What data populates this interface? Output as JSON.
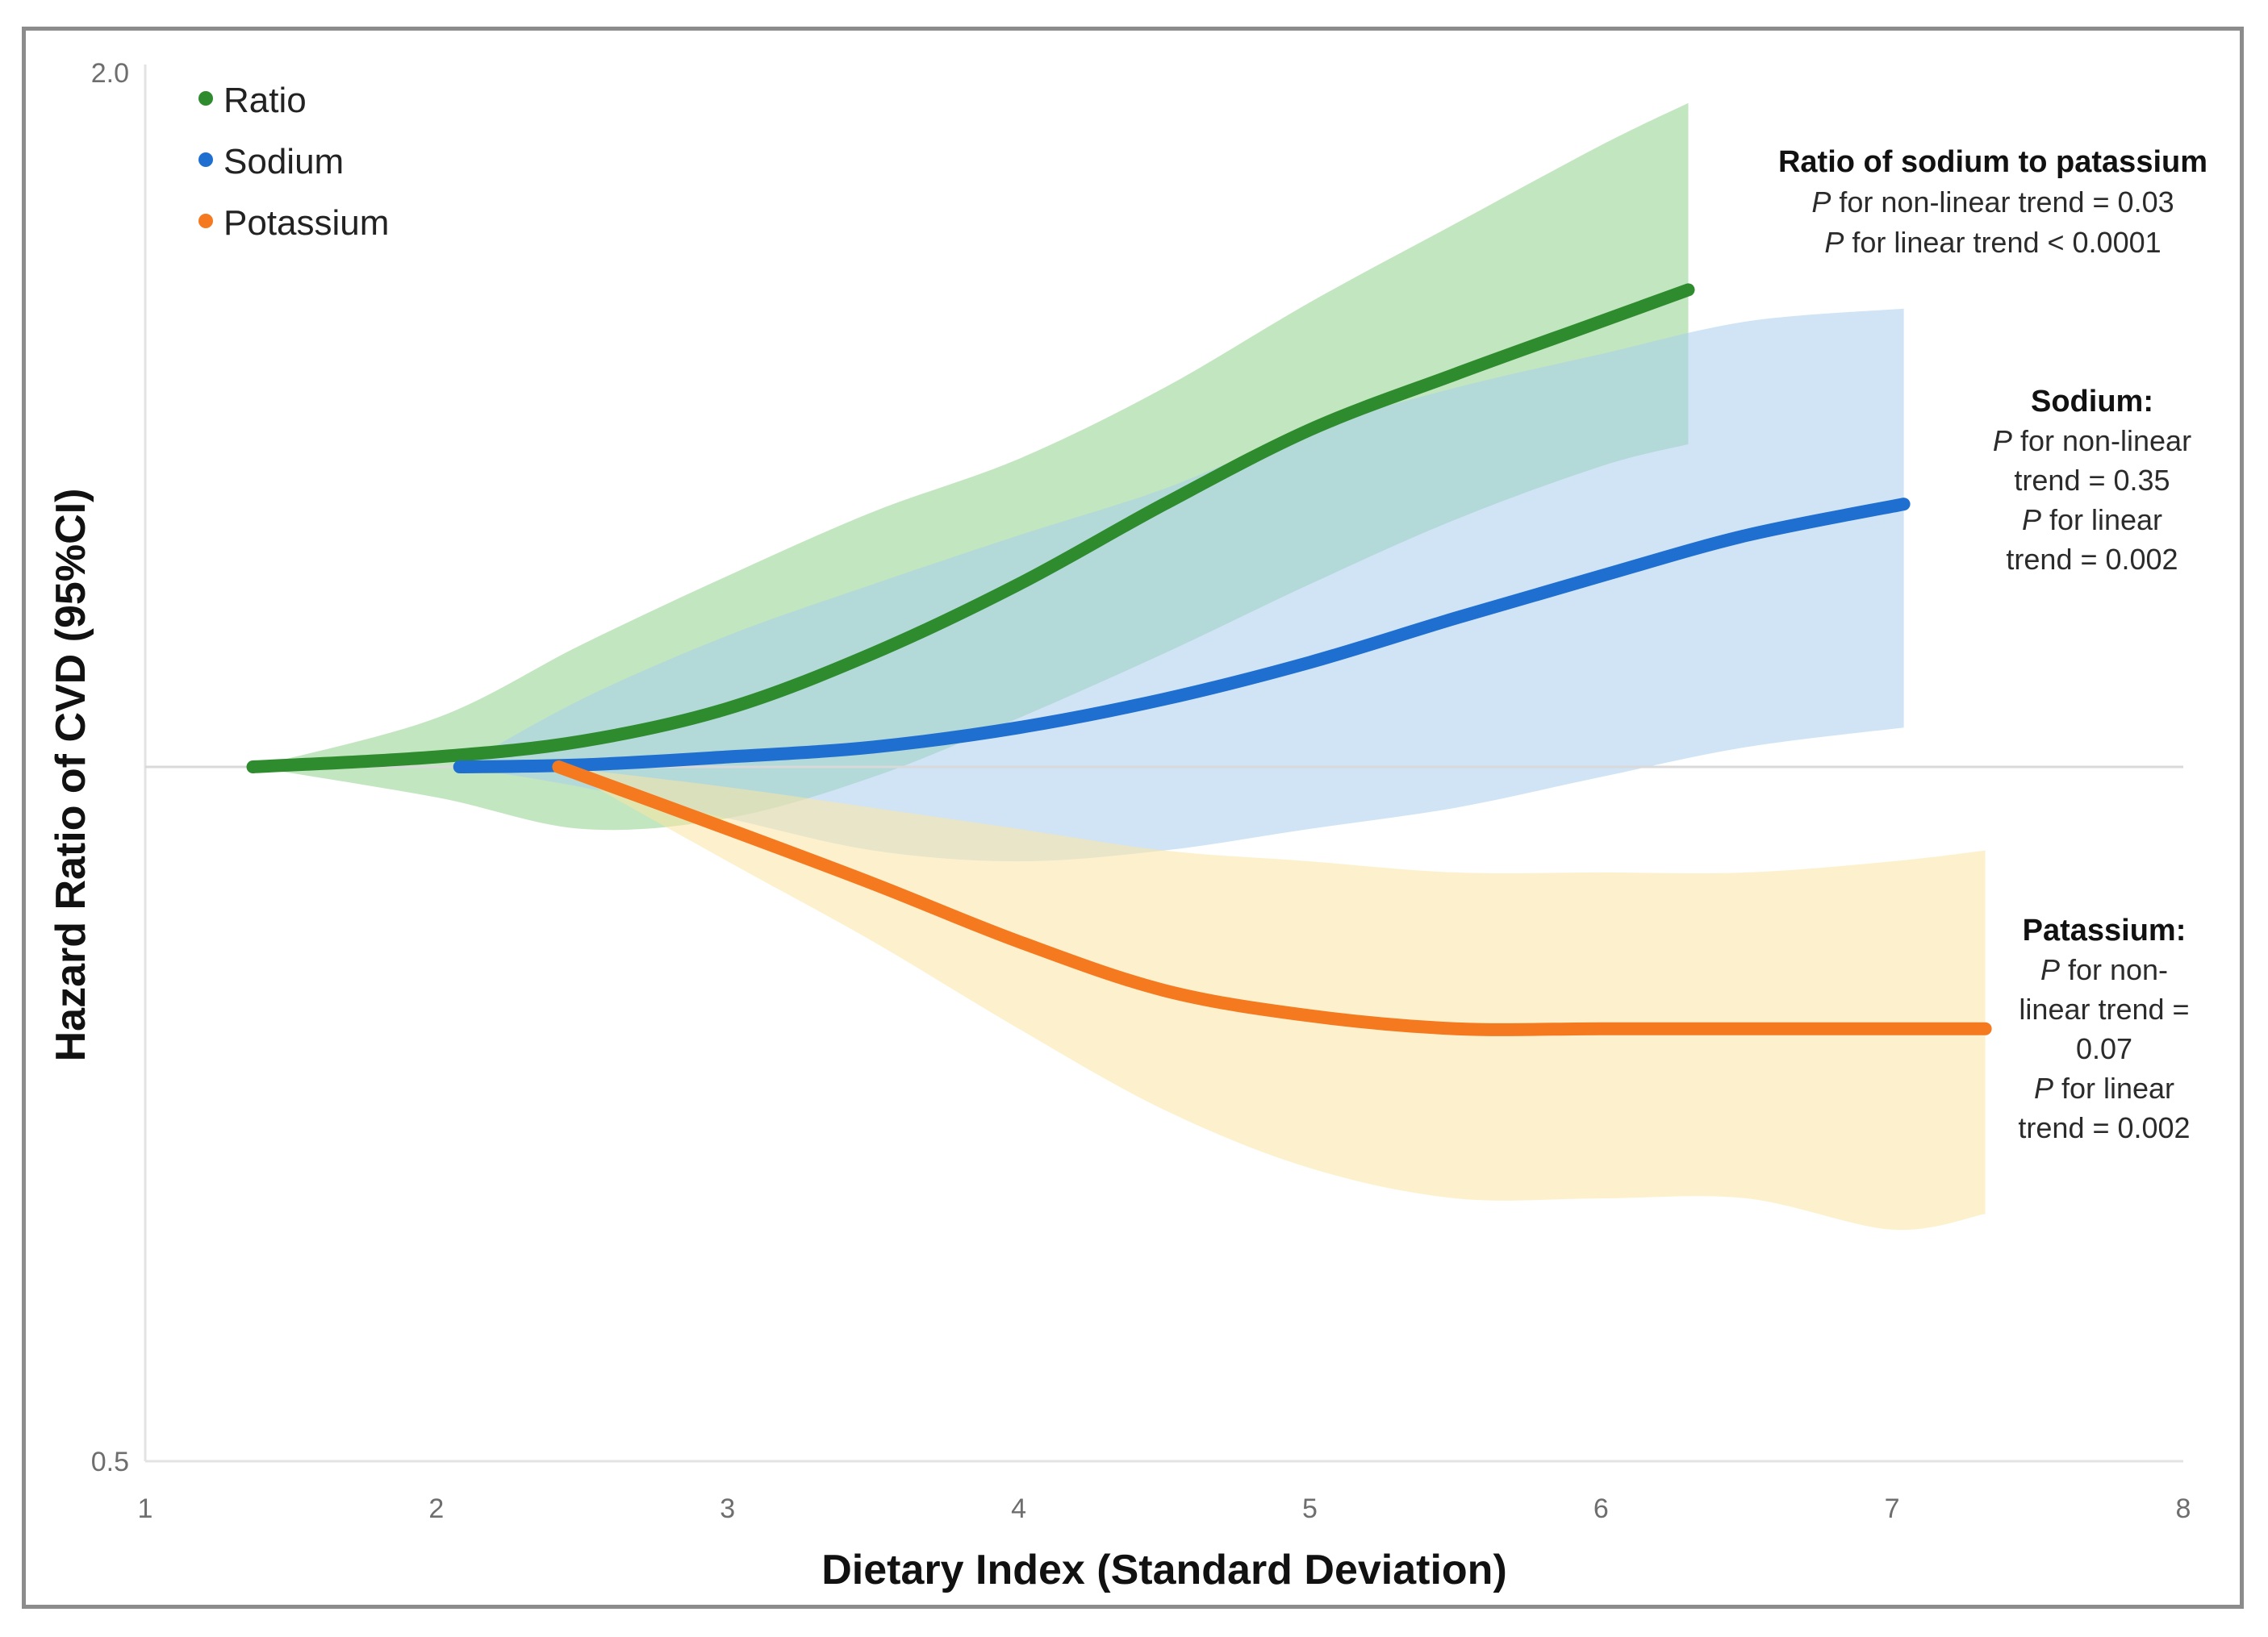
{
  "chart_data": {
    "type": "line",
    "xlabel": "Dietary Index (Standard Deviation)",
    "ylabel": "Hazard Ratio of CVD (95%CI)",
    "xlim": [
      1,
      8
    ],
    "ylim": [
      0.5,
      2.0
    ],
    "reference_line": 1.0,
    "x_ticks": [
      "1",
      "2",
      "3",
      "4",
      "5",
      "6",
      "7",
      "8"
    ],
    "y_ticks": [
      "0.5",
      "2.0"
    ],
    "legend_position": "top-left",
    "series": [
      {
        "name": "Ratio",
        "color": "#2e8b2e",
        "band_color": "#8fd18a",
        "x": [
          1.37,
          2.0,
          2.5,
          3.0,
          3.5,
          4.0,
          4.5,
          5.0,
          5.5,
          6.0,
          6.3
        ],
        "y": [
          1.0,
          1.01,
          1.026,
          1.06,
          1.12,
          1.2,
          1.3,
          1.4,
          1.48,
          1.56,
          1.61
        ],
        "lower": [
          1.0,
          0.97,
          0.94,
          0.95,
          0.99,
          1.05,
          1.12,
          1.2,
          1.28,
          1.35,
          1.38
        ],
        "upper": [
          1.0,
          1.05,
          1.13,
          1.21,
          1.29,
          1.36,
          1.46,
          1.59,
          1.72,
          1.86,
          1.94
        ]
      },
      {
        "name": "Sodium",
        "color": "#1f6fd1",
        "band_color": "#a9cdef",
        "x": [
          2.08,
          2.5,
          3.0,
          3.5,
          4.0,
          4.5,
          5.0,
          5.5,
          6.0,
          6.5,
          7.04
        ],
        "y": [
          1.0,
          1.002,
          1.01,
          1.02,
          1.04,
          1.07,
          1.11,
          1.16,
          1.21,
          1.26,
          1.3
        ],
        "lower": [
          1.0,
          0.98,
          0.95,
          0.92,
          0.91,
          0.92,
          0.94,
          0.96,
          0.99,
          1.02,
          1.04
        ],
        "upper": [
          1.0,
          1.07,
          1.14,
          1.2,
          1.26,
          1.32,
          1.4,
          1.46,
          1.51,
          1.56,
          1.58
        ]
      },
      {
        "name": "Potassium",
        "color": "#f5791f",
        "band_color": "#fce6a4",
        "x": [
          2.42,
          3.0,
          3.5,
          4.0,
          4.5,
          5.0,
          5.5,
          6.0,
          6.5,
          7.0,
          7.32
        ],
        "y": [
          1.0,
          0.94,
          0.89,
          0.84,
          0.8,
          0.78,
          0.77,
          0.77,
          0.77,
          0.77,
          0.77
        ],
        "lower": [
          1.0,
          0.91,
          0.84,
          0.77,
          0.71,
          0.67,
          0.65,
          0.65,
          0.65,
          0.63,
          0.64
        ],
        "upper": [
          1.0,
          0.98,
          0.96,
          0.94,
          0.92,
          0.91,
          0.9,
          0.9,
          0.9,
          0.91,
          0.92
        ]
      }
    ],
    "annotations": [
      {
        "key": "ratio",
        "lines": [
          {
            "text": "Ratio of sodium to patassium",
            "bold": true
          },
          {
            "p": "P",
            "text": " for non-linear trend = 0.03"
          },
          {
            "p": "P",
            "text": " for linear trend < 0.0001"
          }
        ]
      },
      {
        "key": "sodium",
        "lines": [
          {
            "text": "Sodium:",
            "bold": true
          },
          {
            "p": "P",
            "text": " for non-linear"
          },
          {
            "text": "trend = 0.35"
          },
          {
            "p": "P",
            "text": " for linear"
          },
          {
            "text": "trend = 0.002"
          }
        ]
      },
      {
        "key": "potassium",
        "lines": [
          {
            "text": "Patassium:",
            "bold": true
          },
          {
            "p": "P",
            "text": " for non-"
          },
          {
            "text": "linear trend ="
          },
          {
            "text": "0.07"
          },
          {
            "p": "P",
            "text": " for linear"
          },
          {
            "text": "trend = 0.002"
          }
        ]
      }
    ]
  }
}
